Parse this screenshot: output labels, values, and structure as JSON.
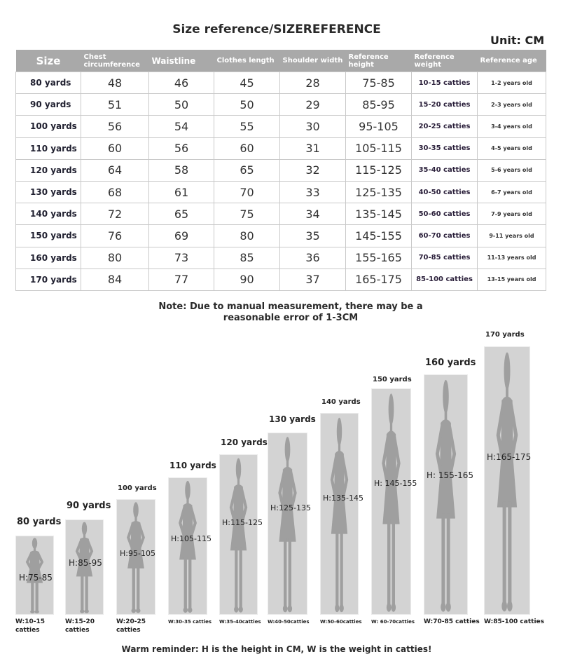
{
  "title": "Size reference/SIZEREFERENCE",
  "unit": "Unit: CM",
  "table": {
    "headers": [
      "Size",
      "Chest circumference",
      "Waistline",
      "Clothes length",
      "Shoulder width",
      "Reference height",
      "Reference weight",
      "Reference age"
    ],
    "rows": [
      [
        "80 yards",
        "48",
        "46",
        "45",
        "28",
        "75-85",
        "10-15 catties",
        "1-2 years old"
      ],
      [
        "90 yards",
        "51",
        "50",
        "50",
        "29",
        "85-95",
        "15-20 catties",
        "2-3 years old"
      ],
      [
        "100 yards",
        "56",
        "54",
        "55",
        "30",
        "95-105",
        "20-25 catties",
        "3-4 years old"
      ],
      [
        "110 yards",
        "60",
        "56",
        "60",
        "31",
        "105-115",
        "30-35 catties",
        "4-5 years old"
      ],
      [
        "120 yards",
        "64",
        "58",
        "65",
        "32",
        "115-125",
        "35-40 catties",
        "5-6 years old"
      ],
      [
        "130 yards",
        "68",
        "61",
        "70",
        "33",
        "125-135",
        "40-50 catties",
        "6-7 years old"
      ],
      [
        "140 yards",
        "72",
        "65",
        "75",
        "34",
        "135-145",
        "50-60 catties",
        "7-9 years old"
      ],
      [
        "150 yards",
        "76",
        "69",
        "80",
        "35",
        "145-155",
        "60-70 catties",
        "9-11 years old"
      ],
      [
        "160 yards",
        "80",
        "73",
        "85",
        "36",
        "155-165",
        "70-85 catties",
        "11-13 years old"
      ],
      [
        "170 yards",
        "84",
        "77",
        "90",
        "37",
        "165-175",
        "85-100 catties",
        "13-15 years old"
      ]
    ]
  },
  "note": "Note: Due to manual measurement, there may be a reasonable error of 1-3CM",
  "figures": [
    {
      "size": "80 yards",
      "height": "H:75-85",
      "weight": "W:10-15 catties"
    },
    {
      "size": "90 yards",
      "height": "H:85-95",
      "weight": "W:15-20 catties"
    },
    {
      "size": "100 yards",
      "height": "H:95-105",
      "weight": "W:20-25 catties"
    },
    {
      "size": "110 yards",
      "height": "H:105-115",
      "weight": "W:30-35 catties"
    },
    {
      "size": "120 yards",
      "height": "H:115-125",
      "weight": "W:35-40catties"
    },
    {
      "size": "130 yards",
      "height": "H:125-135",
      "weight": "W:40-50catties"
    },
    {
      "size": "140 yards",
      "height": "H:135-145",
      "weight": "W:50-60catties"
    },
    {
      "size": "150 yards",
      "height": "H: 145-155",
      "weight": "W: 60-70catties"
    },
    {
      "size": "160 yards",
      "height": "H: 155-165",
      "weight": "W:70-85 catties"
    },
    {
      "size": "170 yards",
      "height": "H:165-175",
      "weight": "W:85-100 catties"
    }
  ],
  "reminder": "Warm reminder: H is the height in CM, W is the weight in catties!"
}
